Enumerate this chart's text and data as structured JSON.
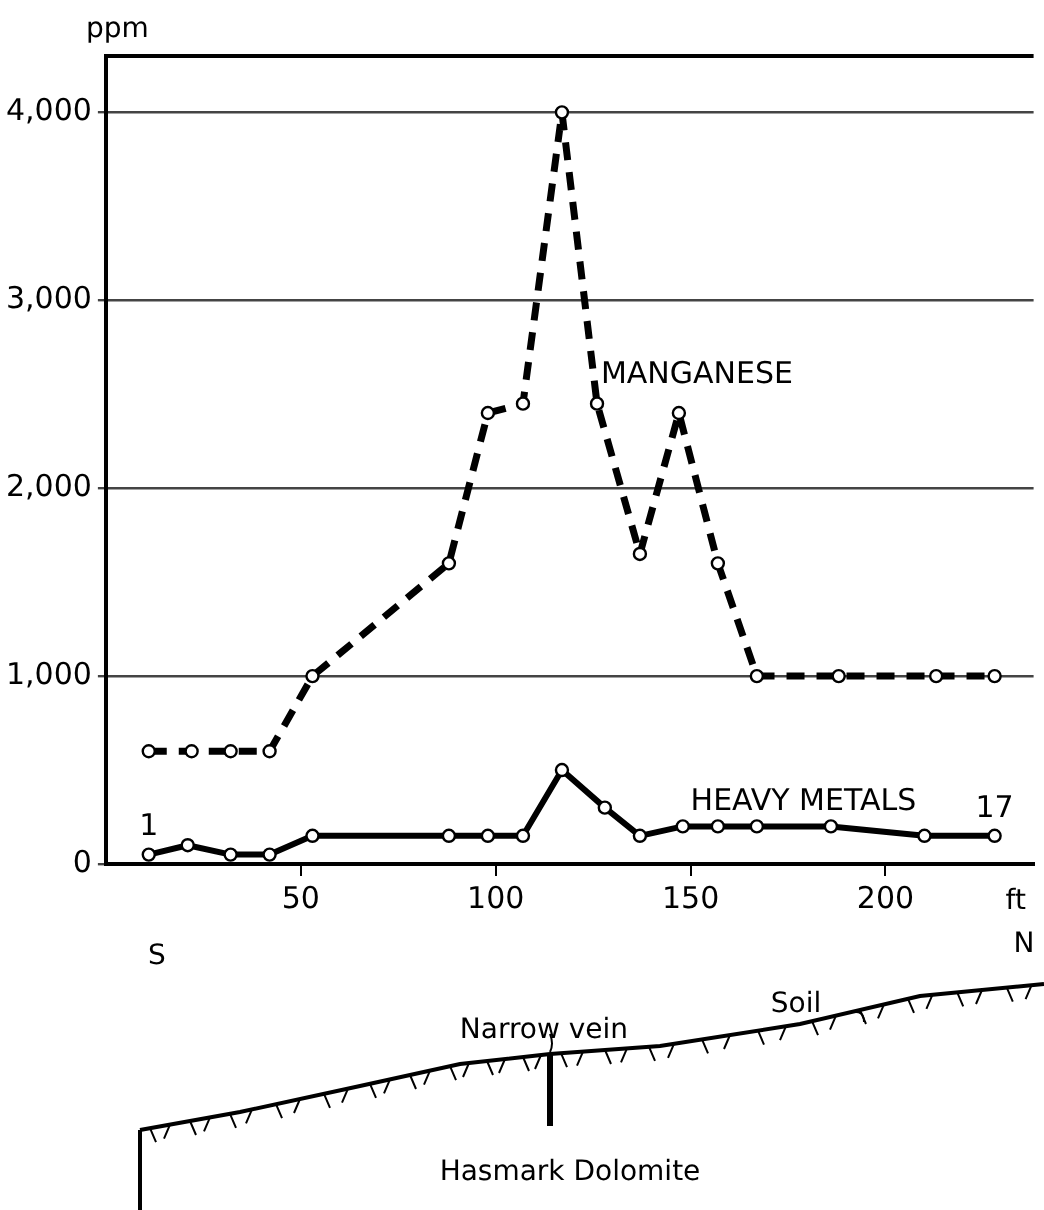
{
  "chart_data": {
    "type": "line",
    "ylabel": "ppm",
    "xlabel": "ft",
    "xlim": [
      0,
      238
    ],
    "xticks": [
      50,
      100,
      150,
      200
    ],
    "ylim": [
      0,
      4300
    ],
    "yticks": [
      0,
      {
        "value": 1000,
        "label": "1,000"
      },
      {
        "value": 2000,
        "label": "2,000"
      },
      {
        "value": 3000,
        "label": "3,000"
      },
      {
        "value": 4000,
        "label": "4,000"
      }
    ],
    "grid": "y",
    "marker": "circle",
    "legend": false,
    "series": [
      {
        "name": "MANGANESE",
        "color": "#000000",
        "line_style": "dashed",
        "x": [
          11,
          22,
          32,
          42,
          53,
          88,
          98,
          107,
          117,
          126,
          137,
          147,
          157,
          167,
          188,
          213,
          228
        ],
        "values": [
          600,
          600,
          600,
          600,
          1000,
          1600,
          2400,
          2450,
          4000,
          2450,
          1650,
          2400,
          1600,
          1000,
          1000,
          1000,
          1000
        ]
      },
      {
        "name": "HEAVY METALS",
        "color": "#000000",
        "line_style": "solid",
        "x": [
          11,
          21,
          32,
          42,
          53,
          88,
          98,
          107,
          117,
          128,
          137,
          148,
          157,
          167,
          186,
          210,
          228
        ],
        "values": [
          50,
          100,
          50,
          50,
          150,
          150,
          150,
          150,
          500,
          300,
          150,
          200,
          200,
          200,
          200,
          150,
          150
        ]
      }
    ],
    "annotations": [
      {
        "text": "1",
        "x": 11,
        "y": 50
      },
      {
        "text": "17",
        "x": 228,
        "y": 150
      },
      "S",
      "N",
      "Narrow vein",
      "Soil",
      "Hasmark Dolomite"
    ]
  }
}
